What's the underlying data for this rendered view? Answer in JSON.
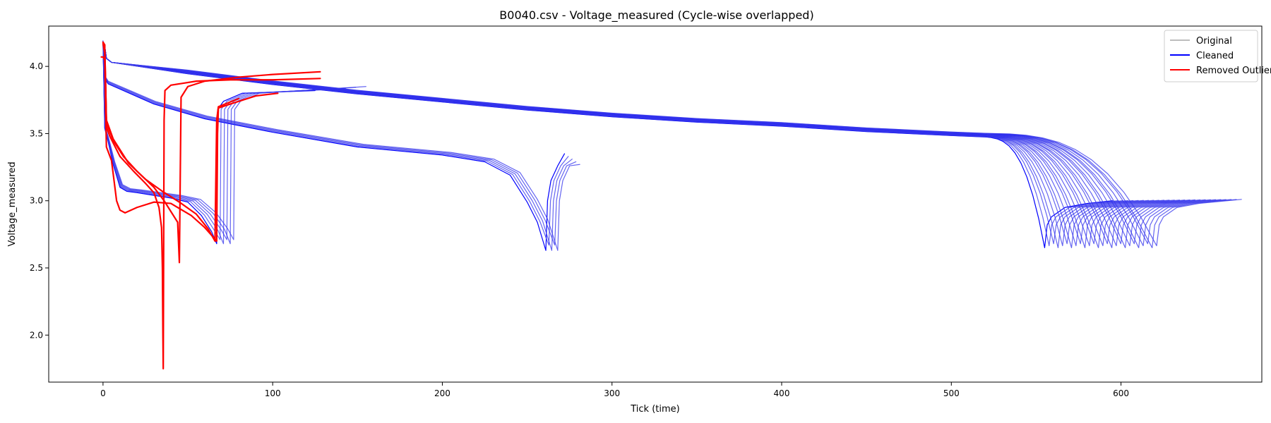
{
  "chart_data": {
    "type": "line",
    "title": "B0040.csv - Voltage_measured (Cycle-wise overlapped)",
    "xlabel": "Tick (time)",
    "ylabel": "Voltage_measured",
    "xlim": [
      -32,
      683
    ],
    "ylim": [
      1.65,
      4.3
    ],
    "xticks": [
      0,
      100,
      200,
      300,
      400,
      500,
      600
    ],
    "xtick_labels": [
      "0",
      "100",
      "200",
      "300",
      "400",
      "500",
      "600"
    ],
    "yticks": [
      2.0,
      2.5,
      3.0,
      3.5,
      4.0
    ],
    "ytick_labels": [
      "2.0",
      "2.5",
      "3.0",
      "3.5",
      "4.0"
    ],
    "grid": false,
    "legend": {
      "position": "top-right",
      "entries": [
        {
          "label": "Original",
          "color": "#bdbdbd"
        },
        {
          "label": "Cleaned",
          "color": "#0000ff"
        },
        {
          "label": "Removed Outlier",
          "color": "#ff0000"
        }
      ]
    },
    "colors": {
      "original": "#bdbdbd",
      "cleaned": "#0000ff",
      "removed": "#ff0000"
    },
    "series_groups": [
      {
        "name": "Cleaned",
        "kind": "long_discharge",
        "count": 26,
        "points": [
          [
            0,
            4.18
          ],
          [
            1,
            4.15
          ],
          [
            2,
            4.06
          ],
          [
            5,
            4.03
          ],
          [
            50,
            3.96
          ],
          [
            100,
            3.88
          ],
          [
            150,
            3.81
          ],
          [
            200,
            3.75
          ],
          [
            250,
            3.69
          ],
          [
            300,
            3.64
          ],
          [
            350,
            3.6
          ],
          [
            400,
            3.57
          ],
          [
            450,
            3.53
          ],
          [
            500,
            3.5
          ],
          [
            520,
            3.49
          ]
        ],
        "tail_from": [
          520,
          3.49
        ],
        "knee_x": [
          520,
          525
        ],
        "trough_x": [
          555,
          621
        ],
        "trough_y": [
          2.65,
          2.68
        ],
        "recovery_end_dx": [
          40,
          50
        ],
        "recovery_end_y": [
          3.0,
          3.01
        ]
      },
      {
        "name": "Cleaned",
        "kind": "mid_discharge",
        "count": 5,
        "points": [
          [
            0,
            4.18
          ],
          [
            1,
            3.92
          ],
          [
            3,
            3.88
          ],
          [
            30,
            3.73
          ],
          [
            60,
            3.62
          ],
          [
            100,
            3.52
          ],
          [
            150,
            3.41
          ],
          [
            200,
            3.35
          ],
          [
            225,
            3.3
          ],
          [
            240,
            3.2
          ],
          [
            250,
            3.0
          ],
          [
            256,
            2.85
          ]
        ],
        "trough_x": [
          261,
          268
        ],
        "trough_y": [
          2.63,
          2.67
        ],
        "recovery_end_dx": [
          11,
          13
        ],
        "recovery_end_y": [
          3.27,
          3.35
        ]
      },
      {
        "name": "Cleaned",
        "kind": "short_discharge",
        "count": 6,
        "points": [
          [
            0,
            4.18
          ],
          [
            1,
            3.55
          ],
          [
            3,
            3.45
          ],
          [
            6,
            3.28
          ],
          [
            10,
            3.11
          ],
          [
            14,
            3.08
          ],
          [
            20,
            3.07
          ],
          [
            30,
            3.05
          ],
          [
            40,
            3.03
          ],
          [
            50,
            3.0
          ],
          [
            58,
            2.9
          ],
          [
            64,
            2.78
          ]
        ],
        "trough_x": [
          67,
          77
        ],
        "trough_y": [
          2.68,
          2.71
        ],
        "rise_to": 3.68,
        "recovery_end_dx": [
          58,
          78
        ],
        "recovery_end_y": [
          3.82,
          3.85
        ]
      },
      {
        "name": "Removed Outlier",
        "segments": [
          [
            [
              -1,
              4.07
            ],
            [
              0,
              4.07
            ],
            [
              1,
              4.05
            ],
            [
              1.5,
              3.9
            ],
            [
              2,
              3.55
            ],
            [
              4,
              3.48
            ],
            [
              10,
              3.33
            ],
            [
              18,
              3.22
            ],
            [
              25,
              3.13
            ],
            [
              30,
              3.06
            ],
            [
              33,
              2.95
            ],
            [
              34.5,
              2.8
            ],
            [
              35,
              2.5
            ],
            [
              35.3,
              2.0
            ],
            [
              35.5,
              1.75
            ],
            [
              36,
              3.6
            ],
            [
              36.5,
              3.82
            ],
            [
              40,
              3.86
            ],
            [
              55,
              3.89
            ],
            [
              75,
              3.9
            ],
            [
              100,
              3.9
            ],
            [
              128,
              3.91
            ]
          ],
          [
            [
              0,
              4.18
            ],
            [
              1,
              4.16
            ],
            [
              2,
              3.58
            ],
            [
              6,
              3.45
            ],
            [
              12,
              3.33
            ],
            [
              20,
              3.22
            ],
            [
              30,
              3.1
            ],
            [
              36,
              3.0
            ],
            [
              40,
              2.92
            ],
            [
              44,
              2.84
            ],
            [
              45,
              2.54
            ],
            [
              46,
              3.77
            ],
            [
              50,
              3.85
            ],
            [
              60,
              3.89
            ],
            [
              80,
              3.92
            ],
            [
              100,
              3.94
            ],
            [
              128,
              3.96
            ]
          ],
          [
            [
              0,
              4.17
            ],
            [
              1,
              4.1
            ],
            [
              1.5,
              3.7
            ],
            [
              2,
              3.4
            ],
            [
              5,
              3.3
            ],
            [
              8,
              3.0
            ],
            [
              10,
              2.93
            ],
            [
              13,
              2.91
            ],
            [
              20,
              2.95
            ],
            [
              30,
              2.99
            ],
            [
              40,
              2.98
            ],
            [
              52,
              2.89
            ],
            [
              60,
              2.8
            ],
            [
              67,
              2.7
            ],
            [
              67.5,
              3.5
            ],
            [
              68,
              3.69
            ],
            [
              75,
              3.72
            ],
            [
              90,
              3.78
            ],
            [
              103,
              3.8
            ]
          ],
          [
            [
              0,
              4.18
            ],
            [
              1,
              4.16
            ],
            [
              2,
              3.6
            ],
            [
              6,
              3.46
            ],
            [
              15,
              3.28
            ],
            [
              25,
              3.16
            ],
            [
              35,
              3.07
            ],
            [
              45,
              2.99
            ],
            [
              55,
              2.9
            ],
            [
              62,
              2.79
            ],
            [
              66,
              2.7
            ],
            [
              67,
              3.6
            ],
            [
              68,
              3.7
            ],
            [
              72,
              3.72
            ],
            [
              80,
              3.76
            ]
          ]
        ]
      }
    ]
  }
}
